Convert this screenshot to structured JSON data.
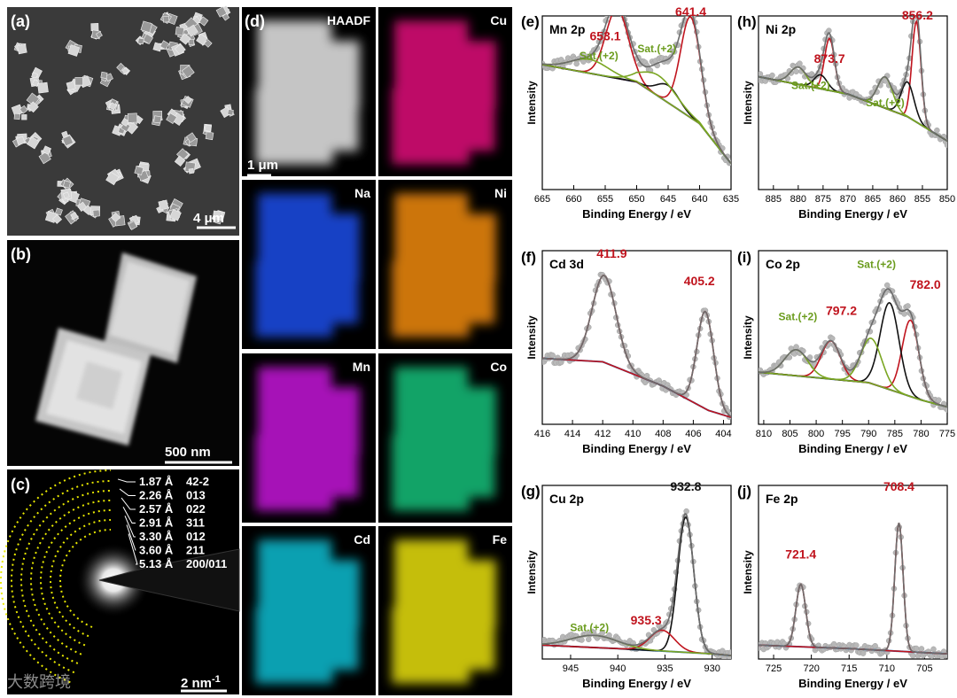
{
  "panels": {
    "a": {
      "label": "(a)",
      "scale": "4 μm"
    },
    "b": {
      "label": "(b)",
      "scale": "500 nm"
    },
    "c": {
      "label": "(c)",
      "scale_base": "2 nm",
      "scale_sup": "-1",
      "rings": [
        {
          "d": "1.87 Å",
          "hkl": "42-2"
        },
        {
          "d": "2.26 Å",
          "hkl": "013"
        },
        {
          "d": "2.57 Å",
          "hkl": "022"
        },
        {
          "d": "2.91 Å",
          "hkl": "311"
        },
        {
          "d": "3.30 Å",
          "hkl": "012"
        },
        {
          "d": "3.60 Å",
          "hkl": "211"
        },
        {
          "d": "5.13 Å",
          "hkl": "200/011"
        }
      ]
    },
    "d": {
      "label": "(d)",
      "scale": "1 μm",
      "maps": [
        {
          "name": "HAADF",
          "color": "#d0d0d0"
        },
        {
          "name": "Cu",
          "color": "#e0107a"
        },
        {
          "name": "Na",
          "color": "#1f4ee8"
        },
        {
          "name": "Ni",
          "color": "#f08a10"
        },
        {
          "name": "Mn",
          "color": "#c414d8"
        },
        {
          "name": "Co",
          "color": "#16c07a"
        },
        {
          "name": "Cd",
          "color": "#10bcd0"
        },
        {
          "name": "Fe",
          "color": "#e8e010"
        }
      ]
    }
  },
  "watermark": "大数跨境",
  "xps_common": {
    "xlabel": "Binding Energy / eV",
    "ylabel": "Intensity"
  },
  "colors": {
    "envelope": "#6b6b6b",
    "points": "#b8b8b8",
    "background": "#2a72b8",
    "main_peak": "#c0141e",
    "sat_peak": "#7aa622",
    "black_peak": "#111111",
    "peak_text": "#c0141e",
    "sat_text": "#6b9c1e"
  },
  "chart_data": [
    {
      "id": "e",
      "label": "(e)",
      "title": "Mn 2p",
      "type": "line",
      "xlim": [
        665,
        635
      ],
      "xticks": [
        665,
        660,
        655,
        650,
        645,
        640,
        635
      ],
      "bg": [
        [
          665,
          0.72
        ],
        [
          650,
          0.62
        ],
        [
          640,
          0.38
        ],
        [
          635,
          0.15
        ]
      ],
      "peaks": [
        {
          "c": 641.4,
          "h": 0.58,
          "w": 1.6,
          "color": "main_peak"
        },
        {
          "c": 653.1,
          "h": 0.4,
          "w": 1.8,
          "color": "main_peak"
        },
        {
          "c": 645.0,
          "h": 0.1,
          "w": 1.8,
          "color": "black_peak"
        },
        {
          "c": 646.5,
          "h": 0.12,
          "w": 2.8,
          "color": "sat_peak"
        },
        {
          "c": 657.5,
          "h": 0.08,
          "w": 3.0,
          "color": "sat_peak"
        }
      ],
      "labels": [
        {
          "text": "641.4",
          "x": 641.4,
          "y": 1.0,
          "color": "peak_text"
        },
        {
          "text": "653.1",
          "x": 655.0,
          "y": 0.86,
          "color": "peak_text"
        },
        {
          "text": "Sat.(+2)",
          "x": 656.0,
          "y": 0.75,
          "color": "sat_text"
        },
        {
          "text": "Sat.(+2)",
          "x": 646.8,
          "y": 0.79,
          "color": "sat_text"
        }
      ]
    },
    {
      "id": "h",
      "label": "(h)",
      "title": "Ni 2p",
      "type": "line",
      "xlim": [
        888,
        850
      ],
      "xticks": [
        885,
        880,
        875,
        870,
        865,
        860,
        855,
        850
      ],
      "bg": [
        [
          888,
          0.65
        ],
        [
          870,
          0.55
        ],
        [
          858,
          0.42
        ],
        [
          850,
          0.28
        ]
      ],
      "peaks": [
        {
          "c": 856.2,
          "h": 0.58,
          "w": 0.9,
          "color": "main_peak"
        },
        {
          "c": 873.7,
          "h": 0.3,
          "w": 1.0,
          "color": "main_peak"
        },
        {
          "c": 858.0,
          "h": 0.2,
          "w": 1.3,
          "color": "black_peak"
        },
        {
          "c": 875.5,
          "h": 0.08,
          "w": 1.3,
          "color": "black_peak"
        },
        {
          "c": 862.5,
          "h": 0.18,
          "w": 1.5,
          "color": "sat_peak"
        },
        {
          "c": 880.0,
          "h": 0.1,
          "w": 1.6,
          "color": "sat_peak"
        }
      ],
      "labels": [
        {
          "text": "856.2",
          "x": 856.0,
          "y": 0.98,
          "color": "peak_text"
        },
        {
          "text": "873.7",
          "x": 873.7,
          "y": 0.73,
          "color": "peak_text"
        },
        {
          "text": "Sat.(+2)",
          "x": 877.5,
          "y": 0.58,
          "color": "sat_text"
        },
        {
          "text": "Sat.(+2)",
          "x": 862.5,
          "y": 0.48,
          "color": "sat_text"
        }
      ]
    },
    {
      "id": "f",
      "label": "(f)",
      "title": "Cd 3d",
      "type": "line",
      "xlim": [
        416,
        403.5
      ],
      "xticks": [
        416,
        414,
        412,
        410,
        408,
        406,
        404
      ],
      "bg": [
        [
          416,
          0.38
        ],
        [
          412,
          0.36
        ],
        [
          408,
          0.22
        ],
        [
          405,
          0.08
        ],
        [
          403.5,
          0.04
        ]
      ],
      "peaks": [
        {
          "c": 411.9,
          "h": 0.5,
          "w": 0.8,
          "color": "main_peak"
        },
        {
          "c": 405.2,
          "h": 0.56,
          "w": 0.55,
          "color": "main_peak"
        }
      ],
      "labels": [
        {
          "text": "411.9",
          "x": 411.4,
          "y": 0.96,
          "color": "peak_text"
        },
        {
          "text": "405.2",
          "x": 405.6,
          "y": 0.8,
          "color": "peak_text"
        }
      ]
    },
    {
      "id": "i",
      "label": "(i)",
      "title": "Co 2p",
      "type": "line",
      "xlim": [
        811,
        775
      ],
      "xticks": [
        810,
        805,
        800,
        795,
        790,
        785,
        780,
        775
      ],
      "bg": [
        [
          811,
          0.3
        ],
        [
          790,
          0.24
        ],
        [
          780,
          0.14
        ],
        [
          775,
          0.1
        ]
      ],
      "peaks": [
        {
          "c": 782.0,
          "h": 0.44,
          "w": 1.6,
          "color": "main_peak"
        },
        {
          "c": 797.2,
          "h": 0.22,
          "w": 1.8,
          "color": "main_peak"
        },
        {
          "c": 786.0,
          "h": 0.5,
          "w": 1.8,
          "color": "black_peak"
        },
        {
          "c": 789.5,
          "h": 0.26,
          "w": 2.0,
          "color": "sat_peak"
        },
        {
          "c": 803.8,
          "h": 0.15,
          "w": 2.2,
          "color": "sat_peak"
        }
      ],
      "labels": [
        {
          "text": "782.0",
          "x": 779.2,
          "y": 0.78,
          "color": "peak_text"
        },
        {
          "text": "797.2",
          "x": 795.2,
          "y": 0.63,
          "color": "peak_text"
        },
        {
          "text": "Sat.(+2)",
          "x": 788.5,
          "y": 0.9,
          "color": "sat_text"
        },
        {
          "text": "Sat.(+2)",
          "x": 803.5,
          "y": 0.6,
          "color": "sat_text"
        }
      ]
    },
    {
      "id": "g",
      "label": "(g)",
      "title": "Cu 2p",
      "type": "line",
      "xlim": [
        948,
        928
      ],
      "xticks": [
        945,
        940,
        935,
        930
      ],
      "bg": [
        [
          948,
          0.08
        ],
        [
          940,
          0.06
        ],
        [
          930,
          0.03
        ],
        [
          928,
          0.02
        ]
      ],
      "peaks": [
        {
          "c": 932.8,
          "h": 0.78,
          "w": 0.85,
          "color": "black_peak"
        },
        {
          "c": 935.3,
          "h": 0.12,
          "w": 1.3,
          "color": "main_peak"
        },
        {
          "c": 942.5,
          "h": 0.07,
          "w": 2.5,
          "color": "sat_peak"
        }
      ],
      "labels": [
        {
          "text": "932.8",
          "x": 932.8,
          "y": 0.97,
          "color": "black_peak"
        },
        {
          "text": "935.3",
          "x": 937.0,
          "y": 0.2,
          "color": "peak_text"
        },
        {
          "text": "Sat.(+2)",
          "x": 943.0,
          "y": 0.16,
          "color": "sat_text"
        }
      ]
    },
    {
      "id": "j",
      "label": "(j)",
      "title": "Fe 2p",
      "type": "line",
      "xlim": [
        727,
        702
      ],
      "xticks": [
        725,
        720,
        715,
        710,
        705
      ],
      "bg": [
        [
          727,
          0.08
        ],
        [
          715,
          0.06
        ],
        [
          702,
          0.03
        ]
      ],
      "peaks": [
        {
          "c": 708.4,
          "h": 0.74,
          "w": 0.55,
          "color": "main_peak"
        },
        {
          "c": 721.4,
          "h": 0.36,
          "w": 0.65,
          "color": "main_peak"
        }
      ],
      "labels": [
        {
          "text": "708.4",
          "x": 708.4,
          "y": 0.97,
          "color": "peak_text"
        },
        {
          "text": "721.4",
          "x": 721.4,
          "y": 0.58,
          "color": "peak_text"
        }
      ]
    }
  ]
}
